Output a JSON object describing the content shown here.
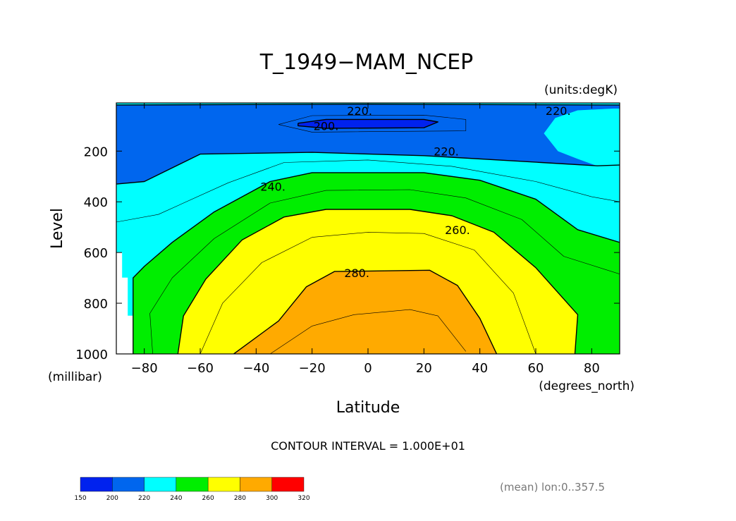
{
  "chart_data": {
    "type": "contour",
    "title": "T_1949−MAM_NCEP",
    "units_label": "(units:degK)",
    "xlabel": "Latitude",
    "xunits": "(degrees_north)",
    "ylabel": "Level",
    "yunits": "(millibar)",
    "xlim": [
      -90,
      90
    ],
    "ylim": [
      1000,
      10
    ],
    "x_ticks": [
      -80,
      -60,
      -40,
      -20,
      0,
      20,
      40,
      60,
      80
    ],
    "x_tick_labels": [
      "−80",
      "−60",
      "−40",
      "−20",
      "0",
      "20",
      "40",
      "60",
      "80"
    ],
    "y_ticks": [
      200,
      400,
      600,
      800,
      1000
    ],
    "y_tick_labels": [
      "200",
      "400",
      "600",
      "800",
      "1000"
    ],
    "contour_interval_text": "CONTOUR INTERVAL = 1.000E+01",
    "mean_note": "(mean) lon:0..357.5",
    "contour_labels": [
      {
        "text": "220.",
        "lat": -3,
        "level": 40
      },
      {
        "text": "200.",
        "lat": -15,
        "level": 100
      },
      {
        "text": "220.",
        "lat": 68,
        "level": 40
      },
      {
        "text": "220.",
        "lat": 28,
        "level": 200
      },
      {
        "text": "240.",
        "lat": -34,
        "level": 340
      },
      {
        "text": "260.",
        "lat": 32,
        "level": 510
      },
      {
        "text": "280.",
        "lat": -4,
        "level": 680
      }
    ],
    "colorbar": {
      "boundaries": [
        150,
        200,
        220,
        240,
        260,
        280,
        300,
        320
      ],
      "labels": [
        "150",
        "200",
        "220",
        "240",
        "260",
        "280",
        "300",
        "320"
      ],
      "colors": [
        "#0022ee",
        "#0066ee",
        "#00ffff",
        "#00ee00",
        "#ffff00",
        "#ffaa00",
        "#ff0000"
      ]
    },
    "filled_regions": [
      {
        "band": "200-220",
        "color": "#0066ee",
        "points": [
          [
            -90,
            10
          ],
          [
            90,
            10
          ],
          [
            90,
            255
          ],
          [
            82,
            258
          ],
          [
            62,
            245
          ],
          [
            20,
            218
          ],
          [
            -20,
            205
          ],
          [
            -60,
            212
          ],
          [
            -80,
            320
          ],
          [
            -90,
            330
          ]
        ]
      },
      {
        "band": "220-240",
        "color": "#00ffff",
        "points": [
          [
            -90,
            330
          ],
          [
            -80,
            320
          ],
          [
            -60,
            212
          ],
          [
            -20,
            205
          ],
          [
            20,
            218
          ],
          [
            62,
            245
          ],
          [
            82,
            258
          ],
          [
            90,
            255
          ],
          [
            90,
            1000
          ],
          [
            -90,
            1000
          ]
        ]
      },
      {
        "band": "240-260",
        "color": "#00ee00",
        "points": [
          [
            -84,
            1000
          ],
          [
            -84,
            700
          ],
          [
            -80,
            655
          ],
          [
            -70,
            560
          ],
          [
            -55,
            440
          ],
          [
            -35,
            320
          ],
          [
            -20,
            285
          ],
          [
            20,
            285
          ],
          [
            40,
            315
          ],
          [
            60,
            390
          ],
          [
            75,
            510
          ],
          [
            90,
            560
          ],
          [
            90,
            1000
          ]
        ]
      },
      {
        "band": "260-280",
        "color": "#ffff00",
        "points": [
          [
            -68,
            1000
          ],
          [
            -66,
            850
          ],
          [
            -58,
            705
          ],
          [
            -45,
            550
          ],
          [
            -30,
            460
          ],
          [
            -15,
            430
          ],
          [
            15,
            430
          ],
          [
            30,
            455
          ],
          [
            45,
            520
          ],
          [
            60,
            660
          ],
          [
            75,
            845
          ],
          [
            74,
            1000
          ]
        ]
      },
      {
        "band": "280-300",
        "color": "#ffaa00",
        "points": [
          [
            -48,
            1000
          ],
          [
            -32,
            870
          ],
          [
            -22,
            735
          ],
          [
            -12,
            675
          ],
          [
            22,
            670
          ],
          [
            32,
            730
          ],
          [
            40,
            860
          ],
          [
            46,
            1000
          ]
        ]
      },
      {
        "band": "190-200",
        "color": "#0022ee",
        "points": [
          [
            -25,
            90
          ],
          [
            -15,
            75
          ],
          [
            20,
            75
          ],
          [
            25,
            85
          ],
          [
            20,
            108
          ],
          [
            -15,
            110
          ],
          [
            -25,
            100
          ]
        ]
      },
      {
        "band": "220-240",
        "color": "#00ffff",
        "points": [
          [
            -90,
            10
          ],
          [
            90,
            10
          ],
          [
            90,
            18
          ],
          [
            0,
            15
          ],
          [
            -90,
            18
          ]
        ]
      },
      {
        "band": "220-240",
        "color": "#00ffff",
        "points": [
          [
            63,
            130
          ],
          [
            67,
            70
          ],
          [
            75,
            40
          ],
          [
            88,
            33
          ],
          [
            90,
            33
          ],
          [
            90,
            255
          ],
          [
            82,
            258
          ],
          [
            75,
            230
          ],
          [
            68,
            200
          ]
        ]
      },
      {
        "band": "below-240",
        "color": "#ffffff",
        "points": [
          [
            -90,
            600
          ],
          [
            -88,
            600
          ],
          [
            -88,
            700
          ],
          [
            -86,
            700
          ],
          [
            -86,
            850
          ],
          [
            -84,
            850
          ],
          [
            -84,
            1000
          ],
          [
            -90,
            1000
          ]
        ]
      }
    ],
    "contour_lines": [
      {
        "level": 200,
        "weight": "bold",
        "points": [
          [
            -25,
            90
          ],
          [
            -15,
            75
          ],
          [
            20,
            75
          ],
          [
            25,
            85
          ],
          [
            20,
            108
          ],
          [
            -15,
            110
          ],
          [
            -25,
            100
          ],
          [
            -25,
            90
          ]
        ]
      },
      {
        "level": 210,
        "weight": "thin",
        "points": [
          [
            -32,
            95
          ],
          [
            -20,
            60
          ],
          [
            20,
            58
          ],
          [
            35,
            75
          ],
          [
            35,
            120
          ],
          [
            -20,
            125
          ],
          [
            -32,
            95
          ]
        ]
      },
      {
        "level": 220,
        "weight": "bold",
        "points": [
          [
            -90,
            18
          ],
          [
            0,
            15
          ],
          [
            90,
            18
          ]
        ]
      },
      {
        "level": 220,
        "weight": "bold",
        "points": [
          [
            -90,
            330
          ],
          [
            -80,
            320
          ],
          [
            -60,
            212
          ],
          [
            -20,
            205
          ],
          [
            20,
            218
          ],
          [
            62,
            245
          ],
          [
            82,
            258
          ],
          [
            90,
            255
          ]
        ]
      },
      {
        "level": 230,
        "weight": "thin",
        "points": [
          [
            -90,
            480
          ],
          [
            -75,
            450
          ],
          [
            -50,
            325
          ],
          [
            -30,
            245
          ],
          [
            0,
            235
          ],
          [
            30,
            260
          ],
          [
            60,
            320
          ],
          [
            80,
            380
          ],
          [
            90,
            400
          ]
        ]
      },
      {
        "level": 240,
        "weight": "bold",
        "points": [
          [
            -84,
            1000
          ],
          [
            -84,
            700
          ],
          [
            -80,
            655
          ],
          [
            -70,
            560
          ],
          [
            -55,
            440
          ],
          [
            -35,
            320
          ],
          [
            -20,
            285
          ],
          [
            20,
            285
          ],
          [
            40,
            315
          ],
          [
            60,
            390
          ],
          [
            75,
            510
          ],
          [
            90,
            560
          ]
        ]
      },
      {
        "level": 250,
        "weight": "thin",
        "points": [
          [
            -77,
            1000
          ],
          [
            -78,
            840
          ],
          [
            -70,
            700
          ],
          [
            -55,
            545
          ],
          [
            -35,
            405
          ],
          [
            -15,
            355
          ],
          [
            15,
            352
          ],
          [
            35,
            385
          ],
          [
            55,
            470
          ],
          [
            70,
            615
          ],
          [
            90,
            685
          ]
        ]
      },
      {
        "level": 260,
        "weight": "bold",
        "points": [
          [
            -68,
            1000
          ],
          [
            -66,
            850
          ],
          [
            -58,
            705
          ],
          [
            -45,
            550
          ],
          [
            -30,
            460
          ],
          [
            -15,
            430
          ],
          [
            15,
            430
          ],
          [
            30,
            455
          ],
          [
            45,
            520
          ],
          [
            60,
            660
          ],
          [
            75,
            845
          ],
          [
            74,
            1000
          ]
        ]
      },
      {
        "level": 270,
        "weight": "thin",
        "points": [
          [
            -60,
            1000
          ],
          [
            -52,
            800
          ],
          [
            -38,
            640
          ],
          [
            -20,
            540
          ],
          [
            0,
            520
          ],
          [
            20,
            525
          ],
          [
            38,
            590
          ],
          [
            52,
            760
          ],
          [
            60,
            1000
          ]
        ]
      },
      {
        "level": 280,
        "weight": "bold",
        "points": [
          [
            -48,
            1000
          ],
          [
            -32,
            870
          ],
          [
            -22,
            735
          ],
          [
            -12,
            675
          ],
          [
            22,
            670
          ],
          [
            32,
            730
          ],
          [
            40,
            860
          ],
          [
            46,
            1000
          ]
        ]
      },
      {
        "level": 290,
        "weight": "thin",
        "points": [
          [
            -35,
            1000
          ],
          [
            -20,
            890
          ],
          [
            -5,
            845
          ],
          [
            15,
            825
          ],
          [
            25,
            850
          ],
          [
            35,
            990
          ]
        ]
      }
    ]
  }
}
